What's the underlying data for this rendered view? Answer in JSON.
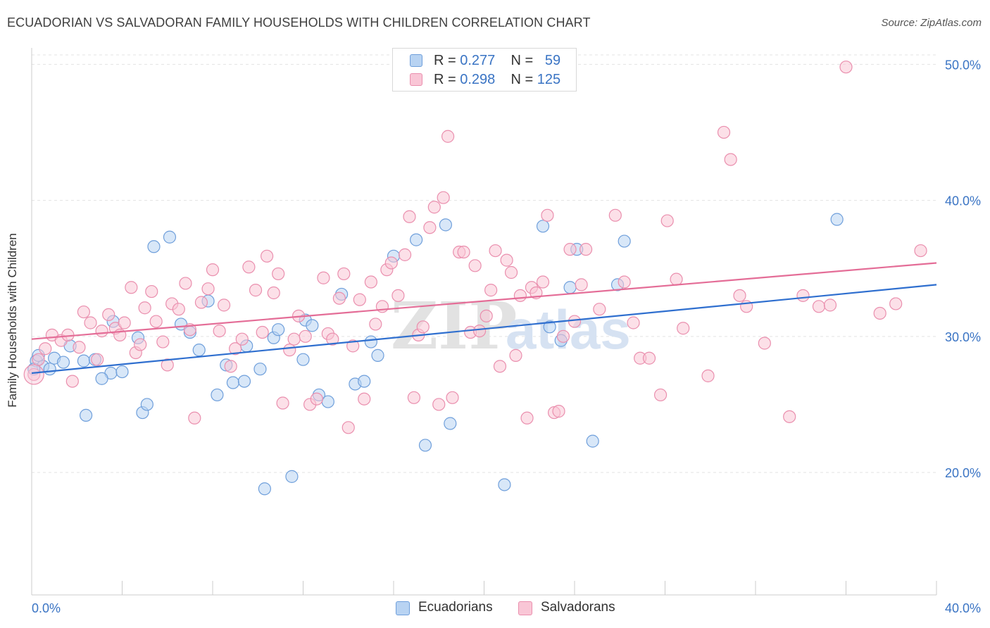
{
  "title": "ECUADORIAN VS SALVADORAN FAMILY HOUSEHOLDS WITH CHILDREN CORRELATION CHART",
  "source": "Source: ZipAtlas.com",
  "watermark": {
    "zip": "ZIP",
    "atlas": "atlas"
  },
  "legend_top": [
    {
      "r_label": "R = ",
      "r_value": "0.277",
      "n_label": "N = ",
      "n_value": "59"
    },
    {
      "r_label": "R = ",
      "r_value": "0.298",
      "n_label": "N = ",
      "n_value": "125"
    }
  ],
  "colors": {
    "ecuadorians_fill": "#b8d3f2",
    "ecuadorians_stroke": "#6f9fdb",
    "ecuadorians_line": "#2f6fcf",
    "salvadorans_fill": "#f9c6d6",
    "salvadorans_stroke": "#ea8fae",
    "salvadorans_line": "#e46d97",
    "tick_label": "#3a74c4",
    "grid": "#e3e3e3"
  },
  "chart_data": {
    "type": "scatter",
    "title": "ECUADORIAN VS SALVADORAN FAMILY HOUSEHOLDS WITH CHILDREN CORRELATION CHART",
    "xlabel": "",
    "ylabel": "Family Households with Children",
    "xlim": [
      0,
      40
    ],
    "ylim": [
      11,
      51
    ],
    "x_tick_labels": [
      "0.0%",
      "40.0%"
    ],
    "y_ticks": [
      20,
      30,
      40,
      50
    ],
    "y_tick_labels": [
      "20.0%",
      "30.0%",
      "40.0%",
      "50.0%"
    ],
    "grid": true,
    "legend_placement": "bottom-center",
    "series": [
      {
        "name": "Ecuadorians",
        "r": 0.277,
        "n": 59,
        "trend": [
          [
            0,
            27.3
          ],
          [
            40,
            33.8
          ]
        ],
        "points": [
          [
            0.2,
            28.2
          ],
          [
            0.3,
            28.6
          ],
          [
            0.5,
            27.8
          ],
          [
            0.8,
            27.6
          ],
          [
            1.0,
            28.4
          ],
          [
            1.4,
            28.1
          ],
          [
            1.7,
            29.3
          ],
          [
            2.3,
            28.2
          ],
          [
            2.8,
            28.3
          ],
          [
            3.5,
            27.3
          ],
          [
            4.0,
            27.4
          ],
          [
            4.7,
            29.9
          ],
          [
            5.4,
            36.6
          ],
          [
            6.1,
            37.3
          ],
          [
            6.6,
            30.9
          ],
          [
            7.0,
            30.3
          ],
          [
            7.4,
            29.0
          ],
          [
            7.8,
            32.6
          ],
          [
            8.2,
            25.7
          ],
          [
            8.6,
            27.9
          ],
          [
            8.9,
            26.6
          ],
          [
            9.4,
            26.7
          ],
          [
            9.5,
            29.3
          ],
          [
            10.1,
            27.6
          ],
          [
            10.3,
            18.8
          ],
          [
            10.7,
            29.9
          ],
          [
            10.9,
            30.5
          ],
          [
            11.5,
            19.7
          ],
          [
            12.0,
            28.3
          ],
          [
            12.1,
            31.2
          ],
          [
            12.4,
            30.8
          ],
          [
            12.7,
            25.7
          ],
          [
            13.1,
            25.2
          ],
          [
            13.7,
            33.1
          ],
          [
            14.3,
            26.5
          ],
          [
            14.7,
            26.7
          ],
          [
            15.0,
            29.6
          ],
          [
            15.3,
            28.6
          ],
          [
            16.0,
            35.9
          ],
          [
            17.0,
            37.1
          ],
          [
            17.4,
            22.0
          ],
          [
            18.3,
            38.2
          ],
          [
            18.5,
            23.6
          ],
          [
            20.9,
            19.1
          ],
          [
            22.6,
            38.1
          ],
          [
            22.9,
            30.7
          ],
          [
            23.4,
            29.7
          ],
          [
            23.8,
            33.6
          ],
          [
            24.1,
            36.4
          ],
          [
            24.8,
            22.3
          ],
          [
            25.9,
            33.8
          ],
          [
            26.2,
            37.0
          ],
          [
            35.6,
            38.6
          ],
          [
            2.4,
            24.2
          ],
          [
            3.1,
            26.9
          ],
          [
            3.6,
            31.1
          ],
          [
            4.9,
            24.4
          ],
          [
            5.1,
            25.0
          ],
          [
            0.1,
            27.6
          ]
        ]
      },
      {
        "name": "Salvadorans",
        "r": 0.298,
        "n": 125,
        "trend": [
          [
            0,
            29.8
          ],
          [
            40,
            35.4
          ]
        ],
        "points": [
          [
            0.1,
            27.2
          ],
          [
            0.3,
            28.3
          ],
          [
            0.6,
            29.1
          ],
          [
            0.9,
            30.1
          ],
          [
            1.3,
            29.7
          ],
          [
            1.6,
            30.1
          ],
          [
            1.8,
            26.7
          ],
          [
            2.1,
            29.2
          ],
          [
            2.3,
            31.8
          ],
          [
            2.6,
            31.0
          ],
          [
            2.9,
            28.3
          ],
          [
            3.1,
            30.4
          ],
          [
            3.4,
            31.6
          ],
          [
            3.7,
            30.6
          ],
          [
            3.9,
            30.1
          ],
          [
            4.1,
            31.0
          ],
          [
            4.4,
            33.6
          ],
          [
            4.6,
            28.8
          ],
          [
            4.8,
            29.4
          ],
          [
            5.0,
            32.1
          ],
          [
            5.3,
            33.3
          ],
          [
            5.5,
            31.1
          ],
          [
            5.8,
            29.6
          ],
          [
            6.0,
            27.9
          ],
          [
            6.2,
            32.4
          ],
          [
            6.5,
            32.0
          ],
          [
            6.8,
            33.9
          ],
          [
            7.0,
            30.5
          ],
          [
            7.2,
            24.0
          ],
          [
            7.5,
            32.5
          ],
          [
            7.8,
            33.5
          ],
          [
            8.0,
            34.9
          ],
          [
            8.3,
            30.4
          ],
          [
            8.5,
            32.3
          ],
          [
            8.8,
            27.8
          ],
          [
            9.0,
            29.1
          ],
          [
            9.3,
            29.8
          ],
          [
            9.6,
            35.1
          ],
          [
            9.9,
            33.4
          ],
          [
            10.2,
            30.3
          ],
          [
            10.4,
            35.9
          ],
          [
            10.7,
            33.2
          ],
          [
            10.9,
            34.6
          ],
          [
            11.1,
            25.1
          ],
          [
            11.4,
            29.0
          ],
          [
            11.6,
            29.8
          ],
          [
            11.8,
            31.5
          ],
          [
            12.1,
            30.0
          ],
          [
            12.3,
            25.0
          ],
          [
            12.6,
            25.4
          ],
          [
            12.9,
            34.3
          ],
          [
            13.1,
            30.2
          ],
          [
            13.3,
            29.8
          ],
          [
            13.6,
            32.8
          ],
          [
            13.8,
            34.6
          ],
          [
            14.0,
            23.3
          ],
          [
            14.2,
            29.3
          ],
          [
            14.5,
            32.7
          ],
          [
            14.7,
            25.4
          ],
          [
            15.0,
            34.0
          ],
          [
            15.2,
            30.9
          ],
          [
            15.5,
            32.2
          ],
          [
            15.7,
            34.9
          ],
          [
            15.9,
            35.4
          ],
          [
            16.2,
            33.0
          ],
          [
            16.5,
            36.0
          ],
          [
            16.7,
            38.8
          ],
          [
            16.9,
            25.5
          ],
          [
            17.1,
            30.1
          ],
          [
            17.3,
            30.7
          ],
          [
            17.6,
            38.0
          ],
          [
            17.8,
            39.5
          ],
          [
            18.0,
            25.0
          ],
          [
            18.2,
            40.2
          ],
          [
            18.4,
            44.7
          ],
          [
            18.6,
            25.5
          ],
          [
            18.9,
            36.2
          ],
          [
            19.1,
            36.2
          ],
          [
            19.4,
            30.3
          ],
          [
            19.6,
            35.2
          ],
          [
            19.8,
            30.4
          ],
          [
            20.1,
            31.5
          ],
          [
            20.3,
            33.4
          ],
          [
            20.5,
            36.3
          ],
          [
            20.7,
            27.8
          ],
          [
            21.0,
            35.6
          ],
          [
            21.2,
            34.7
          ],
          [
            21.4,
            28.6
          ],
          [
            21.6,
            33.0
          ],
          [
            21.9,
            24.0
          ],
          [
            22.1,
            33.6
          ],
          [
            22.3,
            33.2
          ],
          [
            22.6,
            34.0
          ],
          [
            22.8,
            38.9
          ],
          [
            23.1,
            24.4
          ],
          [
            23.3,
            24.5
          ],
          [
            23.5,
            30.0
          ],
          [
            23.8,
            36.4
          ],
          [
            24.0,
            31.1
          ],
          [
            24.3,
            33.8
          ],
          [
            24.5,
            36.4
          ],
          [
            25.1,
            32.0
          ],
          [
            25.8,
            38.9
          ],
          [
            26.2,
            34.0
          ],
          [
            26.6,
            31.0
          ],
          [
            26.9,
            28.4
          ],
          [
            27.3,
            28.4
          ],
          [
            27.8,
            25.7
          ],
          [
            28.1,
            38.5
          ],
          [
            28.5,
            34.2
          ],
          [
            28.8,
            30.6
          ],
          [
            29.9,
            27.1
          ],
          [
            30.6,
            45.0
          ],
          [
            30.9,
            43.0
          ],
          [
            31.3,
            33.0
          ],
          [
            31.6,
            32.2
          ],
          [
            32.4,
            29.5
          ],
          [
            33.5,
            24.1
          ],
          [
            34.1,
            33.0
          ],
          [
            34.8,
            32.2
          ],
          [
            35.3,
            32.3
          ],
          [
            36.0,
            49.8
          ],
          [
            37.5,
            31.7
          ],
          [
            38.2,
            32.4
          ],
          [
            39.3,
            36.3
          ]
        ]
      }
    ]
  },
  "legend_bottom": [
    "Ecuadorians",
    "Salvadorans"
  ]
}
